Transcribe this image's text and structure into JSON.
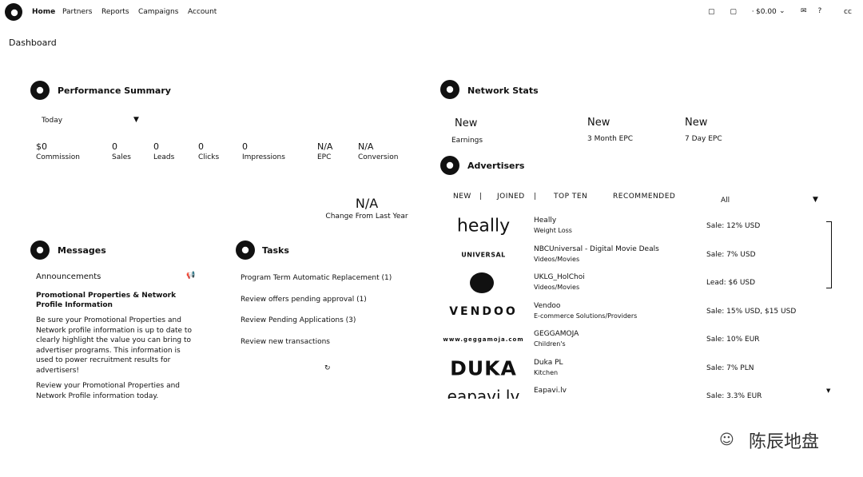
{
  "nav": {
    "items": [
      "Home",
      "Partners",
      "Reports",
      "Campaigns",
      "Account"
    ],
    "balance": "$0.00",
    "user": "cc"
  },
  "page_title": "Dashboard",
  "performance": {
    "title": "Performance Summary",
    "period": "Today",
    "metrics": [
      {
        "value": "$0",
        "label": "Commission"
      },
      {
        "value": "0",
        "label": "Sales"
      },
      {
        "value": "0",
        "label": "Leads"
      },
      {
        "value": "0",
        "label": "Clicks"
      },
      {
        "value": "0",
        "label": "Impressions"
      },
      {
        "value": "N/A",
        "label": "EPC"
      },
      {
        "value": "N/A",
        "label": "Conversion"
      }
    ],
    "change": {
      "value": "N/A",
      "label": "Change From Last Year"
    }
  },
  "network_stats": {
    "title": "Network Stats",
    "stats": [
      {
        "value": "New",
        "label": "Earnings"
      },
      {
        "value": "New",
        "label": "3 Month EPC"
      },
      {
        "value": "New",
        "label": "7 Day EPC"
      }
    ]
  },
  "advertisers": {
    "title": "Advertisers",
    "tabs": [
      "NEW",
      "JOINED",
      "TOP TEN",
      "RECOMMENDED"
    ],
    "filter": "All",
    "rows": [
      {
        "logo": "heally",
        "name": "Heally",
        "category": "Weight Loss",
        "offer": "Sale: 12% USD"
      },
      {
        "logo": "UNIVERSAL",
        "name": "NBCUniversal - Digital Movie Deals",
        "category": "Videos/Movies",
        "offer": "Sale: 7% USD"
      },
      {
        "name": "UKLG_HolChoi",
        "category": "Videos/Movies",
        "offer": "Lead: $6 USD"
      },
      {
        "logo": "VENDOO",
        "name": "Vendoo",
        "category": "E-commerce Solutions/Providers",
        "offer": "Sale: 15% USD, $15 USD"
      },
      {
        "logo": "www.geggamoja.com",
        "name": "GEGGAMOJA",
        "category": "Children's",
        "offer": "Sale: 10% EUR"
      },
      {
        "logo": "DUKA",
        "name": "Duka PL",
        "category": "Kitchen",
        "offer": "Sale: 7% PLN"
      },
      {
        "logo": "eapavi.lv",
        "name": "Eapavi.lv",
        "offer": "Sale: 3.3% EUR"
      }
    ]
  },
  "messages": {
    "title": "Messages",
    "heading": "Announcements",
    "item_title": "Promotional Properties & Network Profile Information",
    "paragraphs": [
      "Be sure your Promotional Properties and Network profile information is up to date to clearly highlight the value you can bring to advertiser programs. This information is used to power recruitment results for advertisers!",
      "Review your Promotional Properties and Network Profile information today."
    ]
  },
  "tasks": {
    "title": "Tasks",
    "items": [
      "Program Term Automatic Replacement (1)",
      "Review offers pending approval (1)",
      "Review Pending Applications (3)",
      "Review new transactions"
    ]
  },
  "watermark": "陈辰地盘"
}
